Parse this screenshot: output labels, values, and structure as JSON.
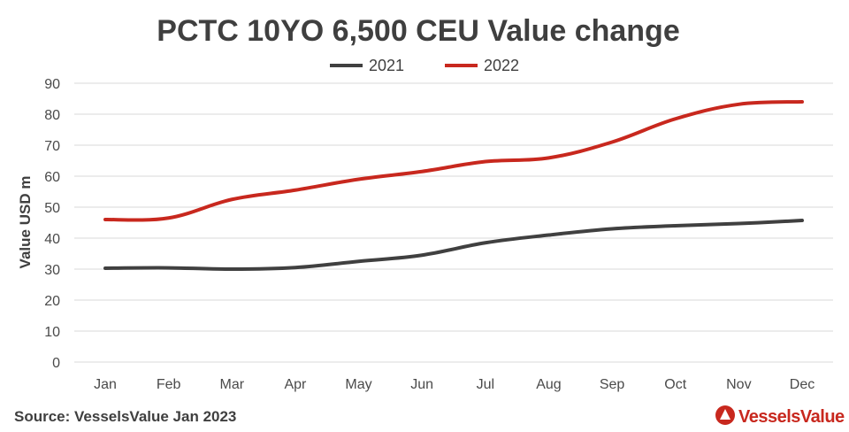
{
  "chart_data": {
    "type": "line",
    "title": "PCTC 10YO 6,500 CEU Value change",
    "ylabel": "Value USD m",
    "xlabel": "",
    "categories": [
      "Jan",
      "Feb",
      "Mar",
      "Apr",
      "May",
      "Jun",
      "Jul",
      "Aug",
      "Sep",
      "Oct",
      "Nov",
      "Dec"
    ],
    "yticks": [
      0,
      10,
      20,
      30,
      40,
      50,
      60,
      70,
      80,
      90
    ],
    "ylim": [
      0,
      90
    ],
    "grid": true,
    "legend_position": "top-center",
    "series": [
      {
        "name": "2021",
        "color": "#404040",
        "values": [
          30.3,
          30.4,
          30.0,
          30.5,
          32.5,
          34.5,
          38.5,
          41.0,
          43.0,
          44.0,
          44.7,
          45.7
        ]
      },
      {
        "name": "2022",
        "color": "#c8281e",
        "values": [
          46.0,
          46.5,
          52.5,
          55.5,
          59.0,
          61.5,
          64.7,
          65.9,
          71.0,
          78.5,
          83.2,
          84.0
        ]
      }
    ]
  },
  "footer": {
    "source": "Source: VesselsValue Jan 2023",
    "brand": "VesselsValue",
    "brand_color": "#c8281e",
    "brand_icon": "vesselsvalue-logo-icon"
  }
}
